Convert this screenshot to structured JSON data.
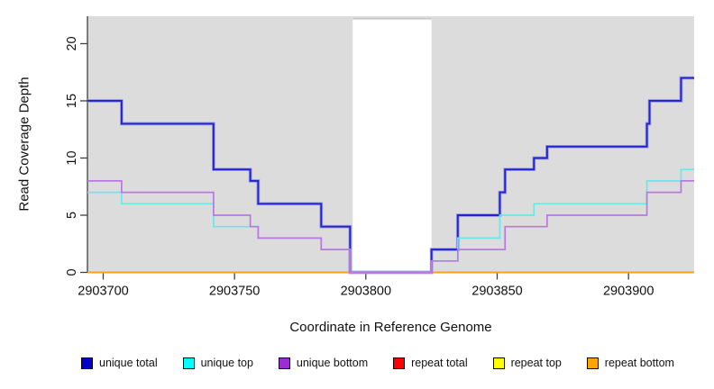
{
  "chart_data": {
    "type": "line",
    "step": true,
    "title": "",
    "xlabel": "Coordinate in Reference Genome",
    "ylabel": "Read Coverage Depth",
    "xlim": [
      2903694,
      2903925
    ],
    "ylim": [
      0,
      22.4
    ],
    "xticks": [
      2903700,
      2903750,
      2903800,
      2903850,
      2903900
    ],
    "yticks": [
      0,
      5,
      10,
      15,
      20
    ],
    "grid": false,
    "legend_position": "bottom",
    "plot_bg": "#dcdcdc",
    "figure_bg": "#ffffff",
    "axis_color": "#404040",
    "highlight_band": {
      "x0": 2903795,
      "x1": 2903825,
      "color": "#ffffff"
    },
    "series": [
      {
        "name": "repeat total",
        "legend_color": "#ff0000",
        "line_color": "#ff0000",
        "width": 1.4,
        "points": [
          [
            2903694,
            0
          ]
        ]
      },
      {
        "name": "repeat top",
        "legend_color": "#ffff00",
        "line_color": "#ffff00",
        "width": 1.4,
        "points": [
          [
            2903694,
            0
          ]
        ]
      },
      {
        "name": "repeat bottom",
        "legend_color": "#ffa500",
        "line_color": "#ffa11e",
        "width": 2,
        "points": [
          [
            2903694,
            0
          ]
        ]
      },
      {
        "name": "unique total",
        "legend_color": "#0000cd",
        "line_color": "#2323cd",
        "halo_color": "#9b9be4",
        "width": 1.9,
        "points": [
          [
            2903694,
            15
          ],
          [
            2903707,
            13
          ],
          [
            2903742,
            9
          ],
          [
            2903756,
            8
          ],
          [
            2903759,
            6
          ],
          [
            2903783,
            4
          ],
          [
            2903794,
            0
          ],
          [
            2903825,
            2
          ],
          [
            2903835,
            5
          ],
          [
            2903851,
            7
          ],
          [
            2903853,
            9
          ],
          [
            2903864,
            10
          ],
          [
            2903869,
            11
          ],
          [
            2903907,
            13
          ],
          [
            2903908,
            15
          ],
          [
            2903920,
            17
          ]
        ]
      },
      {
        "name": "unique top",
        "legend_color": "#00ffff",
        "line_color": "#6ce6e8",
        "width": 1.7,
        "points": [
          [
            2903694,
            7
          ],
          [
            2903707,
            6
          ],
          [
            2903742,
            4
          ],
          [
            2903759,
            3
          ],
          [
            2903783,
            2
          ],
          [
            2903794,
            0
          ],
          [
            2903825,
            1
          ],
          [
            2903835,
            3
          ],
          [
            2903851,
            5
          ],
          [
            2903864,
            6
          ],
          [
            2903907,
            8
          ],
          [
            2903920,
            9
          ]
        ]
      },
      {
        "name": "unique bottom",
        "legend_color": "#9a2ed3",
        "line_color": "#b878e0",
        "width": 1.7,
        "points": [
          [
            2903694,
            8
          ],
          [
            2903707,
            7
          ],
          [
            2903742,
            5
          ],
          [
            2903756,
            4
          ],
          [
            2903759,
            3
          ],
          [
            2903783,
            2
          ],
          [
            2903794,
            0
          ],
          [
            2903825,
            1
          ],
          [
            2903835,
            2
          ],
          [
            2903853,
            4
          ],
          [
            2903869,
            5
          ],
          [
            2903907,
            7
          ],
          [
            2903920,
            8
          ]
        ]
      }
    ]
  }
}
